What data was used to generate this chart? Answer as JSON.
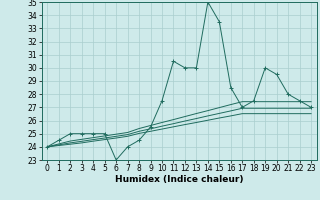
{
  "xlabel": "Humidex (Indice chaleur)",
  "x": [
    0,
    1,
    2,
    3,
    4,
    5,
    6,
    7,
    8,
    9,
    10,
    11,
    12,
    13,
    14,
    15,
    16,
    17,
    18,
    19,
    20,
    21,
    22,
    23
  ],
  "y_main": [
    24,
    24.5,
    25,
    25,
    25,
    25,
    23,
    24,
    24.5,
    25.5,
    27.5,
    30.5,
    30,
    30,
    35,
    33.5,
    28.5,
    27,
    27.5,
    30,
    29.5,
    28,
    27.5,
    27
  ],
  "y_line1": [
    24.0,
    24.22,
    24.44,
    24.57,
    24.7,
    24.83,
    24.96,
    25.09,
    25.39,
    25.62,
    25.85,
    26.07,
    26.3,
    26.53,
    26.75,
    26.98,
    27.21,
    27.43,
    27.43,
    27.43,
    27.43,
    27.43,
    27.43,
    27.43
  ],
  "y_line2": [
    24.0,
    24.15,
    24.3,
    24.42,
    24.55,
    24.67,
    24.8,
    24.93,
    25.18,
    25.37,
    25.57,
    25.76,
    25.96,
    26.15,
    26.35,
    26.54,
    26.73,
    26.93,
    26.93,
    26.93,
    26.93,
    26.93,
    26.93,
    26.93
  ],
  "y_line3": [
    24.0,
    24.1,
    24.2,
    24.3,
    24.43,
    24.55,
    24.67,
    24.8,
    25.02,
    25.18,
    25.35,
    25.52,
    25.69,
    25.85,
    26.02,
    26.19,
    26.35,
    26.52,
    26.52,
    26.52,
    26.52,
    26.52,
    26.52,
    26.52
  ],
  "ylim": [
    23,
    35
  ],
  "yticks": [
    23,
    24,
    25,
    26,
    27,
    28,
    29,
    30,
    31,
    32,
    33,
    34,
    35
  ],
  "xticks": [
    0,
    1,
    2,
    3,
    4,
    5,
    6,
    7,
    8,
    9,
    10,
    11,
    12,
    13,
    14,
    15,
    16,
    17,
    18,
    19,
    20,
    21,
    22,
    23
  ],
  "line_color": "#1f6b5e",
  "bg_color": "#ceeaea",
  "grid_color": "#aacece",
  "axis_fontsize": 6.5,
  "tick_fontsize": 5.5
}
